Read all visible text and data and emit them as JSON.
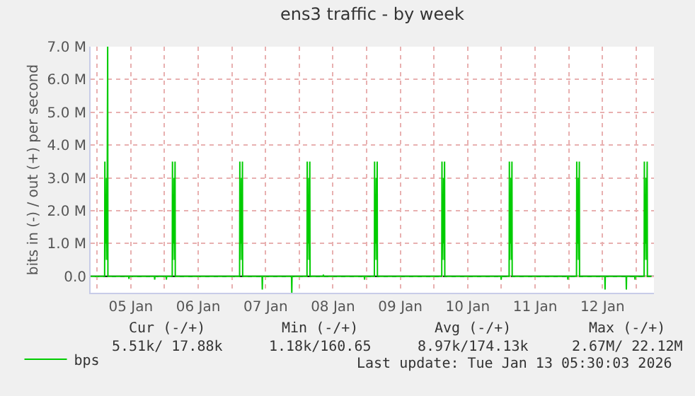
{
  "chart_data": {
    "type": "line",
    "title": "ens3 traffic - by week",
    "ylabel": "bits in (-) / out (+) per second",
    "xlim": [
      "2026-01-04T21:40",
      "2026-01-13T06:20"
    ],
    "xticks": [
      {
        "value": "2026-01-05",
        "label": null
      },
      {
        "value": "2026-01-05T12:00",
        "label": "05 Jan"
      },
      {
        "value": "2026-01-06",
        "label": null
      },
      {
        "value": "2026-01-06T12:00",
        "label": "06 Jan"
      },
      {
        "value": "2026-01-07",
        "label": null
      },
      {
        "value": "2026-01-07T12:00",
        "label": "07 Jan"
      },
      {
        "value": "2026-01-08",
        "label": null
      },
      {
        "value": "2026-01-08T12:00",
        "label": "08 Jan"
      },
      {
        "value": "2026-01-09",
        "label": null
      },
      {
        "value": "2026-01-09T12:00",
        "label": "09 Jan"
      },
      {
        "value": "2026-01-10",
        "label": null
      },
      {
        "value": "2026-01-10T12:00",
        "label": "10 Jan"
      },
      {
        "value": "2026-01-11",
        "label": null
      },
      {
        "value": "2026-01-11T12:00",
        "label": "11 Jan"
      },
      {
        "value": "2026-01-12",
        "label": null
      },
      {
        "value": "2026-01-12T12:00",
        "label": "12 Jan"
      },
      {
        "value": "2026-01-13",
        "label": null
      }
    ],
    "ylim": [
      -500000,
      7000000
    ],
    "yticks": [
      {
        "value": 0,
        "label": "0.0"
      },
      {
        "value": 1000000,
        "label": "1.0 M"
      },
      {
        "value": 2000000,
        "label": "2.0 M"
      },
      {
        "value": 3000000,
        "label": "3.0 M"
      },
      {
        "value": 4000000,
        "label": "4.0 M"
      },
      {
        "value": 5000000,
        "label": "5.0 M"
      },
      {
        "value": 6000000,
        "label": "6.0 M"
      },
      {
        "value": 7000000,
        "label": "7.0 M"
      }
    ],
    "grid": true,
    "legend": "bottom left",
    "ref_lines": [
      {
        "axis": "y",
        "value": 0,
        "color": "#000000",
        "line_style": "solid"
      }
    ],
    "marker": "none",
    "line_style": "solid",
    "series": [
      {
        "name": "bps",
        "color": "#00cc00",
        "x": [
          "2026-01-04T21:40",
          "2026-01-05T02:40",
          "2026-01-05T02:45",
          "2026-01-05T02:50",
          "2026-01-05T03:00",
          "2026-01-05T03:10",
          "2026-01-05T03:20",
          "2026-01-05T03:30",
          "2026-01-05T03:45",
          "2026-01-05T03:50",
          "2026-01-05T11:15",
          "2026-01-05T11:20",
          "2026-01-05T11:25",
          "2026-01-05T20:25",
          "2026-01-05T20:30",
          "2026-01-05T20:35",
          "2026-01-06T00:35",
          "2026-01-06T00:40",
          "2026-01-06T00:45",
          "2026-01-06T02:45",
          "2026-01-06T02:50",
          "2026-01-06T02:55",
          "2026-01-06T03:05",
          "2026-01-06T03:15",
          "2026-01-06T03:25",
          "2026-01-06T03:35",
          "2026-01-06T03:45",
          "2026-01-06T03:50",
          "2026-01-07T02:45",
          "2026-01-07T02:50",
          "2026-01-07T02:55",
          "2026-01-07T03:05",
          "2026-01-07T03:15",
          "2026-01-07T03:25",
          "2026-01-07T03:35",
          "2026-01-07T03:45",
          "2026-01-07T03:50",
          "2026-01-07T10:45",
          "2026-01-07T10:50",
          "2026-01-07T10:55",
          "2026-01-07T21:15",
          "2026-01-07T21:20",
          "2026-01-07T21:25",
          "2026-01-08T02:45",
          "2026-01-08T02:50",
          "2026-01-08T02:55",
          "2026-01-08T03:05",
          "2026-01-08T03:15",
          "2026-01-08T03:25",
          "2026-01-08T03:35",
          "2026-01-08T03:45",
          "2026-01-08T03:50",
          "2026-01-08T08:30",
          "2026-01-08T08:35",
          "2026-01-08T08:40",
          "2026-01-08T23:10",
          "2026-01-08T23:15",
          "2026-01-08T23:20",
          "2026-01-09T02:45",
          "2026-01-09T02:50",
          "2026-01-09T02:55",
          "2026-01-09T03:05",
          "2026-01-09T03:15",
          "2026-01-09T03:25",
          "2026-01-09T03:35",
          "2026-01-09T03:45",
          "2026-01-09T03:50",
          "2026-01-10T02:45",
          "2026-01-10T02:50",
          "2026-01-10T02:55",
          "2026-01-10T03:05",
          "2026-01-10T03:15",
          "2026-01-10T03:25",
          "2026-01-10T03:35",
          "2026-01-10T03:45",
          "2026-01-10T03:50",
          "2026-01-10T23:50",
          "2026-01-10T23:55",
          "2026-01-11T00:00",
          "2026-01-11T02:45",
          "2026-01-11T02:50",
          "2026-01-11T02:55",
          "2026-01-11T03:05",
          "2026-01-11T03:15",
          "2026-01-11T03:25",
          "2026-01-11T03:35",
          "2026-01-11T03:45",
          "2026-01-11T03:50",
          "2026-01-11T23:35",
          "2026-01-11T23:40",
          "2026-01-11T23:45",
          "2026-01-12T02:45",
          "2026-01-12T02:50",
          "2026-01-12T02:55",
          "2026-01-12T03:05",
          "2026-01-12T03:15",
          "2026-01-12T03:25",
          "2026-01-12T03:35",
          "2026-01-12T03:45",
          "2026-01-12T03:50",
          "2026-01-12T12:50",
          "2026-01-12T12:55",
          "2026-01-12T13:00",
          "2026-01-12T20:25",
          "2026-01-12T20:30",
          "2026-01-12T20:35",
          "2026-01-12T23:30",
          "2026-01-12T23:35",
          "2026-01-12T23:40",
          "2026-01-13T02:50",
          "2026-01-13T02:55",
          "2026-01-13T03:00",
          "2026-01-13T03:10",
          "2026-01-13T03:20",
          "2026-01-13T03:30",
          "2026-01-13T03:40",
          "2026-01-13T03:55",
          "2026-01-13T04:00",
          "2026-01-13T05:30"
        ],
        "values": [
          0,
          0,
          3500000,
          500000,
          2500000,
          1000000,
          3000000,
          500000,
          7000000,
          0,
          0,
          -80000,
          0,
          0,
          -100000,
          0,
          0,
          -100000,
          0,
          0,
          3500000,
          500000,
          2500000,
          1000000,
          3000000,
          500000,
          3500000,
          0,
          0,
          3500000,
          500000,
          2500000,
          1000000,
          3000000,
          500000,
          3500000,
          0,
          0,
          -400000,
          0,
          0,
          -500000,
          0,
          0,
          3500000,
          500000,
          2500000,
          1000000,
          3000000,
          500000,
          3500000,
          0,
          0,
          50000,
          0,
          0,
          -100000,
          0,
          0,
          3500000,
          500000,
          2500000,
          1000000,
          3000000,
          500000,
          3500000,
          0,
          0,
          3500000,
          500000,
          2500000,
          1000000,
          3000000,
          500000,
          3500000,
          0,
          0,
          -100000,
          0,
          0,
          3500000,
          500000,
          2500000,
          1000000,
          3000000,
          500000,
          3500000,
          0,
          0,
          -100000,
          0,
          0,
          3500000,
          500000,
          2500000,
          1000000,
          3000000,
          500000,
          3500000,
          0,
          0,
          -400000,
          0,
          0,
          -400000,
          0,
          0,
          -100000,
          0,
          0,
          3500000,
          500000,
          2500000,
          1000000,
          3000000,
          500000,
          3500000,
          0,
          0
        ]
      }
    ],
    "annotations": [
      "Cur (-/+)",
      "Min (-/+)",
      "Avg (-/+)",
      "Max (-/+)",
      "5.51k/ 17.88k",
      "1.18k/160.65",
      "8.97k/174.13k",
      "2.67M/ 22.12M",
      "Last update: Tue Jan 13 05:30:03 2026"
    ]
  }
}
